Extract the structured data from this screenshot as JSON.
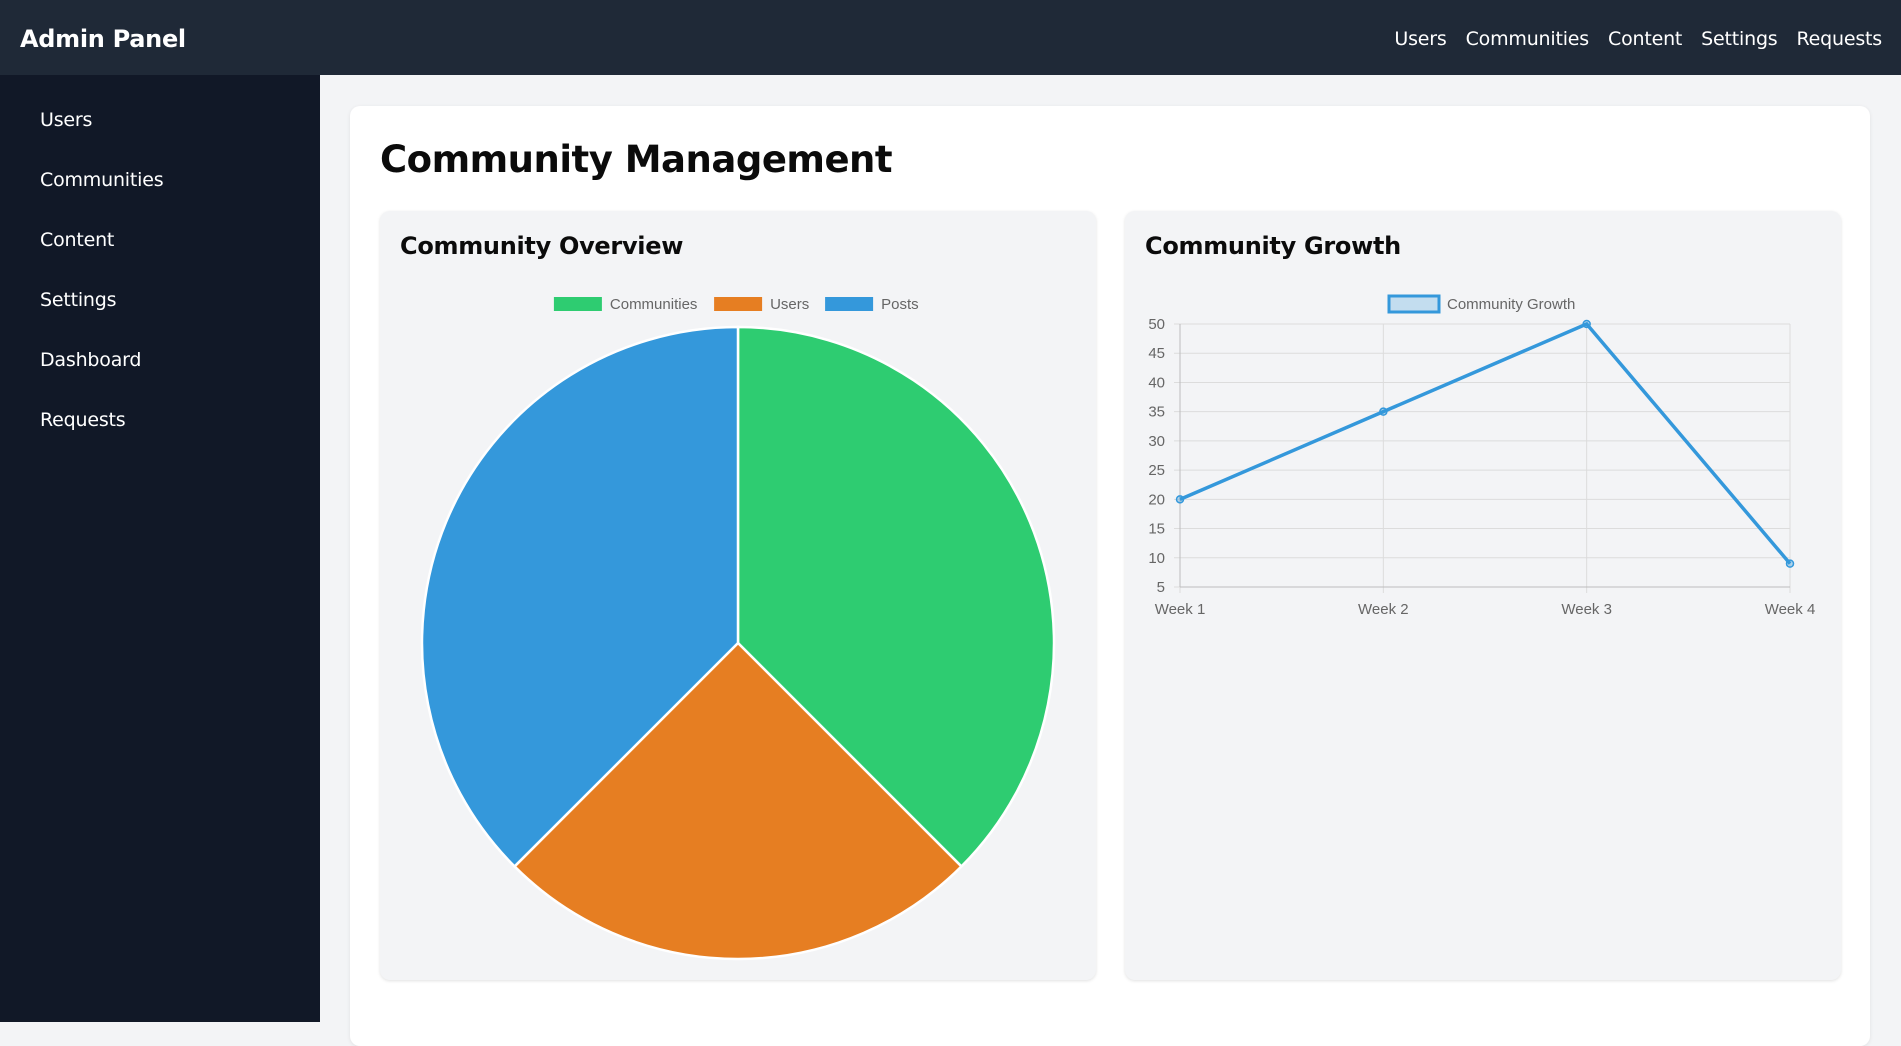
{
  "header": {
    "brand": "Admin Panel",
    "nav": [
      "Users",
      "Communities",
      "Content",
      "Settings",
      "Requests"
    ]
  },
  "sidebar": {
    "items": [
      "Users",
      "Communities",
      "Content",
      "Settings",
      "Dashboard",
      "Requests"
    ]
  },
  "page": {
    "title": "Community Management"
  },
  "panels": {
    "overview_title": "Community Overview",
    "growth_title": "Community Growth"
  },
  "colors": {
    "topbar": "#1f2937",
    "sidebar": "#111827",
    "green": "#2ecc71",
    "orange": "#e67e22",
    "blue": "#3498db"
  },
  "chart_data": [
    {
      "type": "pie",
      "categories": [
        "Communities",
        "Users",
        "Posts"
      ],
      "values": [
        37.5,
        25,
        37.5
      ],
      "colors": [
        "#2ecc71",
        "#e67e22",
        "#3498db"
      ],
      "legend": "top"
    },
    {
      "type": "line",
      "x": [
        "Week 1",
        "Week 2",
        "Week 3",
        "Week 4"
      ],
      "series": [
        {
          "name": "Community Growth",
          "values": [
            20,
            35,
            50,
            9
          ],
          "color": "#3498db"
        }
      ],
      "ylim": [
        5,
        50
      ],
      "yticks": [
        5,
        10,
        15,
        20,
        25,
        30,
        35,
        40,
        45,
        50
      ],
      "grid": true,
      "legend": "top"
    }
  ]
}
